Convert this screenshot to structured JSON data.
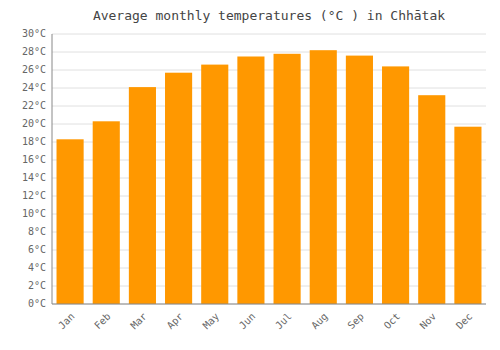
{
  "chart_data": {
    "type": "bar",
    "title": "Average monthly temperatures (°C ) in Chhātak",
    "categories": [
      "Jan",
      "Feb",
      "Mar",
      "Apr",
      "May",
      "Jun",
      "Jul",
      "Aug",
      "Sep",
      "Oct",
      "Nov",
      "Dec"
    ],
    "values": [
      18.3,
      20.3,
      24.1,
      25.7,
      26.6,
      27.5,
      27.8,
      28.2,
      27.6,
      26.4,
      23.2,
      19.7
    ],
    "color": "#FF9800",
    "ylim": [
      0,
      30
    ],
    "yticks": [
      {
        "value": 0,
        "label": "0°C"
      },
      {
        "value": 2,
        "label": "2°C"
      },
      {
        "value": 4,
        "label": "4°C"
      },
      {
        "value": 6,
        "label": "6°C"
      },
      {
        "value": 8,
        "label": "8°C"
      },
      {
        "value": 10,
        "label": "10°C"
      },
      {
        "value": 12,
        "label": "12°C"
      },
      {
        "value": 14,
        "label": "14°C"
      },
      {
        "value": 16,
        "label": "16°C"
      },
      {
        "value": 18,
        "label": "18°C"
      },
      {
        "value": 20,
        "label": "20°C"
      },
      {
        "value": 22,
        "label": "22°C"
      },
      {
        "value": 24,
        "label": "24°C"
      },
      {
        "value": 26,
        "label": "26°C"
      },
      {
        "value": 28,
        "label": "28°C"
      },
      {
        "value": 30,
        "label": "30°C"
      }
    ],
    "grid": true
  }
}
